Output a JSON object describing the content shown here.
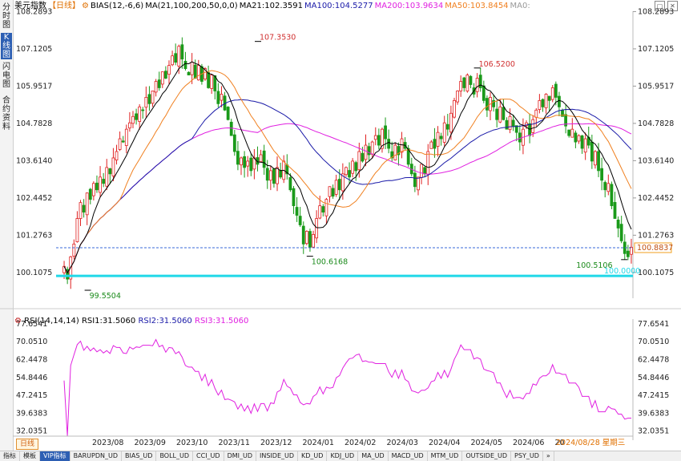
{
  "sidebar": {
    "tabs": [
      {
        "label": "分时图",
        "active": false
      },
      {
        "label": "K线图",
        "active": true
      },
      {
        "label": "闪电图",
        "active": false
      },
      {
        "label": "合约资料",
        "active": false
      }
    ]
  },
  "header": {
    "title": "美元指数",
    "period": "【日线】",
    "bias": "BIAS(12,-6,6)",
    "ma_params": "MA(21,100,200,50,0,0)",
    "ma21": "MA21:102.3591",
    "ma100": "MA100:104.5277",
    "ma200": "MA200:103.9634",
    "ma50": "MA50:103.8454",
    "ma0": "MA0:"
  },
  "rsi_header": {
    "params": "RSI(14,14,14)",
    "rsi1": "RSI1:31.5060",
    "rsi2": "RSI2:31.5060",
    "rsi3": "RSI3:31.5060"
  },
  "colors": {
    "up": "#e02020",
    "down": "#1a9a1a",
    "ma21": "#000000",
    "ma100": "#1a1aa8",
    "ma200": "#e020e0",
    "ma50": "#f08020",
    "rsi": "#e020e0",
    "support": "#20d8e8",
    "price_line": "#3a6ad8",
    "current_label_bg": "#ffffff",
    "current_label_border": "#f0a020"
  },
  "chart_data": {
    "type": "candlestick",
    "price_axis": {
      "ticks": [
        "108.2893",
        "107.1205",
        "105.9517",
        "104.7828",
        "103.6140",
        "102.4452",
        "101.2763",
        "100.1075"
      ],
      "range": [
        99.4,
        108.3
      ]
    },
    "rsi_axis": {
      "ticks": [
        "77.6541",
        "70.0510",
        "62.4478",
        "54.8446",
        "47.2415",
        "39.6383",
        "32.0351"
      ],
      "range": [
        29.5,
        79
      ]
    },
    "x_labels": [
      "2023/08",
      "2023/09",
      "2023/10",
      "2023/11",
      "2023/12",
      "2024/01",
      "2024/02",
      "2024/03",
      "2024/04",
      "2024/05",
      "2024/06",
      "20"
    ],
    "cursor_date": "2024/08/28 星期三",
    "annotations": [
      {
        "label": "107.3530",
        "value": 107.353,
        "kind": "high"
      },
      {
        "label": "106.5200",
        "value": 106.52,
        "kind": "high"
      },
      {
        "label": "100.6168",
        "value": 100.6168,
        "kind": "low"
      },
      {
        "label": "100.5106",
        "value": 100.5106,
        "kind": "low"
      },
      {
        "label": "99.5504",
        "value": 99.5504,
        "kind": "low"
      }
    ],
    "current_price": "100.8837",
    "support_level": {
      "label": "100.0000",
      "value": 100.0
    },
    "series_close": [
      100.3,
      99.9,
      100.6,
      101.0,
      101.8,
      102.3,
      102.0,
      102.6,
      102.4,
      102.9,
      102.7,
      103.1,
      102.9,
      103.4,
      103.2,
      103.7,
      103.9,
      104.3,
      104.2,
      104.6,
      104.8,
      105.0,
      104.9,
      105.3,
      105.2,
      105.6,
      105.4,
      105.8,
      106.1,
      105.9,
      106.4,
      106.2,
      106.6,
      106.9,
      106.7,
      107.2,
      106.8,
      106.5,
      106.3,
      106.7,
      106.2,
      106.6,
      106.1,
      106.5,
      105.9,
      106.3,
      105.8,
      105.4,
      105.7,
      105.2,
      104.9,
      104.4,
      103.9,
      103.5,
      103.7,
      103.4,
      103.6,
      103.3,
      103.7,
      103.5,
      103.8,
      103.4,
      103.0,
      103.3,
      102.9,
      103.4,
      103.1,
      103.6,
      103.2,
      102.7,
      102.2,
      101.9,
      101.6,
      101.0,
      101.4,
      100.9,
      101.3,
      101.8,
      102.2,
      102.0,
      102.4,
      102.8,
      102.5,
      103.0,
      102.7,
      103.2,
      103.4,
      103.1,
      103.6,
      103.3,
      103.9,
      103.6,
      104.1,
      103.8,
      104.2,
      104.4,
      104.1,
      104.6,
      104.3,
      104.0,
      103.7,
      104.1,
      103.8,
      104.3,
      104.0,
      103.5,
      103.2,
      102.8,
      103.1,
      103.5,
      103.2,
      103.9,
      104.2,
      104.0,
      104.5,
      104.3,
      104.8,
      104.6,
      105.1,
      105.5,
      105.8,
      106.1,
      105.9,
      106.3,
      106.0,
      105.7,
      106.2,
      105.9,
      105.5,
      105.2,
      105.6,
      105.3,
      104.9,
      105.3,
      104.9,
      104.6,
      105.0,
      104.7,
      104.5,
      104.2,
      104.6,
      104.8,
      104.4,
      104.9,
      105.2,
      105.5,
      105.3,
      105.7,
      105.5,
      105.9,
      105.6,
      105.3,
      105.0,
      104.7,
      104.4,
      104.6,
      104.2,
      104.4,
      104.0,
      104.3,
      104.1,
      103.6,
      103.9,
      103.3,
      103.0,
      102.7,
      102.9,
      102.2,
      101.8,
      101.5,
      101.1,
      100.7,
      100.6,
      100.9
    ]
  }
}
